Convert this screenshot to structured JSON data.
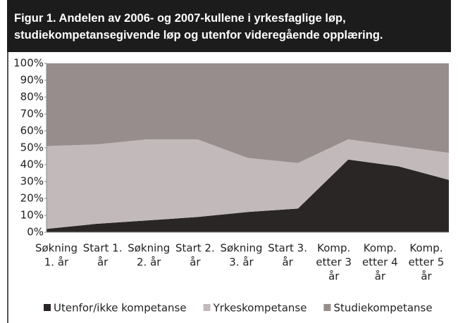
{
  "chart_data": {
    "type": "stacked_area",
    "title": "Figur 1. Andelen av 2006- og 2007-kullene i yrkesfaglige løp, studiekompetansegivende løp og utenfor videregående opplæring.",
    "categories": [
      [
        "Søkning",
        "1. år"
      ],
      [
        "Start 1.",
        "år"
      ],
      [
        "Søkning",
        "2. år"
      ],
      [
        "Start 2.",
        "år"
      ],
      [
        "Søkning",
        "3. år"
      ],
      [
        "Start 3.",
        "år"
      ],
      [
        "Komp.",
        "etter 3",
        "år"
      ],
      [
        "Komp.",
        "etter 4",
        "år"
      ],
      [
        "Komp.",
        "etter 5",
        "år"
      ]
    ],
    "series": [
      {
        "name": "Utenfor/ikke kompetanse",
        "color": "#2b2626",
        "values": [
          2,
          5,
          7,
          9,
          12,
          14,
          43,
          39,
          31
        ]
      },
      {
        "name": "Yrkeskompetanse",
        "color": "#c2baba",
        "values": [
          49,
          47,
          48,
          46,
          32,
          27,
          12,
          12,
          16
        ]
      },
      {
        "name": "Studiekompetanse",
        "color": "#978d8d",
        "values": [
          49,
          48,
          45,
          45,
          56,
          59,
          45,
          49,
          53
        ]
      }
    ],
    "ylim": [
      0,
      100
    ],
    "yticks": [
      {
        "value": 0,
        "label": "0%"
      },
      {
        "value": 10,
        "label": "10%"
      },
      {
        "value": 20,
        "label": "20%"
      },
      {
        "value": 30,
        "label": "30%"
      },
      {
        "value": 40,
        "label": "40%"
      },
      {
        "value": 50,
        "label": "50%"
      },
      {
        "value": 60,
        "label": "60%"
      },
      {
        "value": 70,
        "label": "70%"
      },
      {
        "value": 80,
        "label": "80%"
      },
      {
        "value": 90,
        "label": "90%"
      },
      {
        "value": 100,
        "label": "100%"
      }
    ]
  }
}
